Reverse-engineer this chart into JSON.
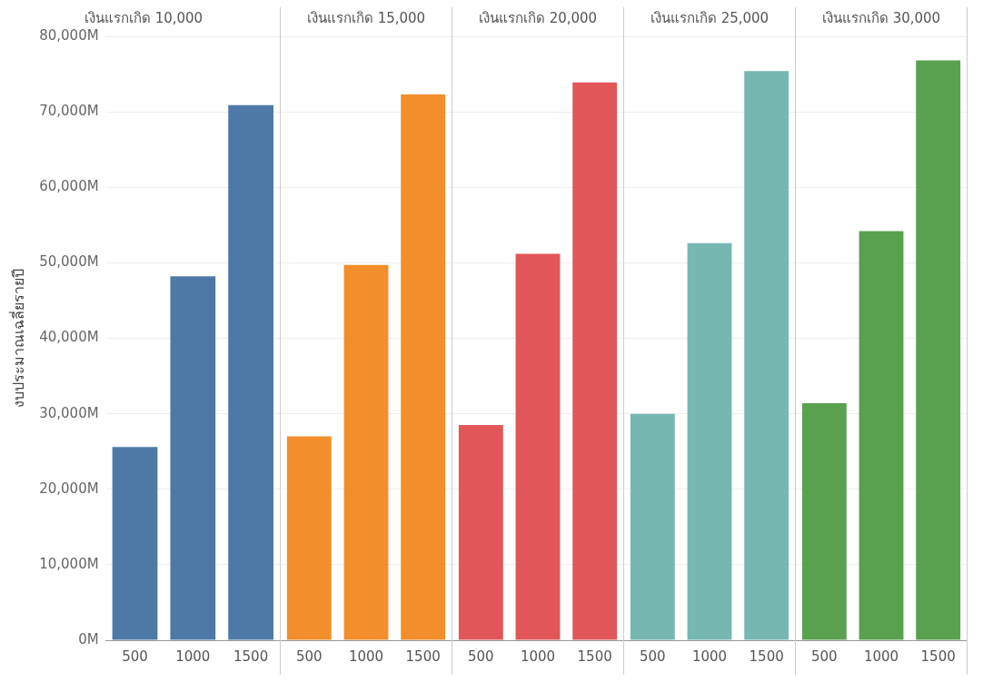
{
  "chart_data": [
    {
      "type": "bar",
      "title": "เงินแรกเกิด 10,000",
      "ylabel": "งบประมาณเฉลี่ยรายปี",
      "categories": [
        "500",
        "1000",
        "1500"
      ],
      "values": [
        25600,
        48200,
        70900
      ],
      "color": "#4e79a7",
      "ylim": [
        0,
        80000
      ],
      "yticks": [
        {
          "value": 0,
          "label": "0M"
        },
        {
          "value": 10000,
          "label": "10,000M"
        },
        {
          "value": 20000,
          "label": "20,000M"
        },
        {
          "value": 30000,
          "label": "30,000M"
        },
        {
          "value": 40000,
          "label": "40,000M"
        },
        {
          "value": 50000,
          "label": "50,000M"
        },
        {
          "value": 60000,
          "label": "60,000M"
        },
        {
          "value": 70000,
          "label": "70,000M"
        },
        {
          "value": 80000,
          "label": "80,000M"
        }
      ],
      "grid": "y",
      "legend": false
    },
    {
      "type": "bar",
      "title": "เงินแรกเกิด 15,000",
      "categories": [
        "500",
        "1000",
        "1500"
      ],
      "values": [
        27000,
        49700,
        72300
      ],
      "color": "#f28e2b",
      "ylim": [
        0,
        80000
      ],
      "yticks": [
        {
          "value": 0,
          "label": null
        },
        {
          "value": 10000,
          "label": null
        },
        {
          "value": 20000,
          "label": null
        },
        {
          "value": 30000,
          "label": null
        },
        {
          "value": 40000,
          "label": null
        },
        {
          "value": 50000,
          "label": null
        },
        {
          "value": 60000,
          "label": null
        },
        {
          "value": 70000,
          "label": null
        },
        {
          "value": 80000,
          "label": null
        }
      ],
      "grid": "y",
      "legend": false,
      "tick_labels": "x"
    },
    {
      "type": "bar",
      "title": "เงินแรกเกิด 20,000",
      "categories": [
        "500",
        "1000",
        "1500"
      ],
      "values": [
        28500,
        51200,
        73900
      ],
      "color": "#e15759",
      "ylim": [
        0,
        80000
      ],
      "yticks": [
        {
          "value": 0,
          "label": null
        },
        {
          "value": 10000,
          "label": null
        },
        {
          "value": 20000,
          "label": null
        },
        {
          "value": 30000,
          "label": null
        },
        {
          "value": 40000,
          "label": null
        },
        {
          "value": 50000,
          "label": null
        },
        {
          "value": 60000,
          "label": null
        },
        {
          "value": 70000,
          "label": null
        },
        {
          "value": 80000,
          "label": null
        }
      ],
      "grid": "y",
      "legend": false,
      "tick_labels": "x"
    },
    {
      "type": "bar",
      "title": "เงินแรกเกิด 25,000",
      "categories": [
        "500",
        "1000",
        "1500"
      ],
      "values": [
        30000,
        52600,
        75400
      ],
      "color": "#76b7b2",
      "ylim": [
        0,
        80000
      ],
      "yticks": [
        {
          "value": 0,
          "label": null
        },
        {
          "value": 10000,
          "label": null
        },
        {
          "value": 20000,
          "label": null
        },
        {
          "value": 30000,
          "label": null
        },
        {
          "value": 40000,
          "label": null
        },
        {
          "value": 50000,
          "label": null
        },
        {
          "value": 60000,
          "label": null
        },
        {
          "value": 70000,
          "label": null
        },
        {
          "value": 80000,
          "label": null
        }
      ],
      "grid": "y",
      "legend": false,
      "tick_labels": "x"
    },
    {
      "type": "bar",
      "title": "เงินแรกเกิด 30,000",
      "categories": [
        "500",
        "1000",
        "1500"
      ],
      "values": [
        31400,
        54200,
        76800
      ],
      "color": "#59a14f",
      "ylim": [
        0,
        80000
      ],
      "yticks": [
        {
          "value": 0,
          "label": null
        },
        {
          "value": 10000,
          "label": null
        },
        {
          "value": 20000,
          "label": null
        },
        {
          "value": 30000,
          "label": null
        },
        {
          "value": 40000,
          "label": null
        },
        {
          "value": 50000,
          "label": null
        },
        {
          "value": 60000,
          "label": null
        },
        {
          "value": 70000,
          "label": null
        },
        {
          "value": 80000,
          "label": null
        }
      ],
      "grid": "y",
      "legend": false,
      "tick_labels": "x"
    }
  ]
}
